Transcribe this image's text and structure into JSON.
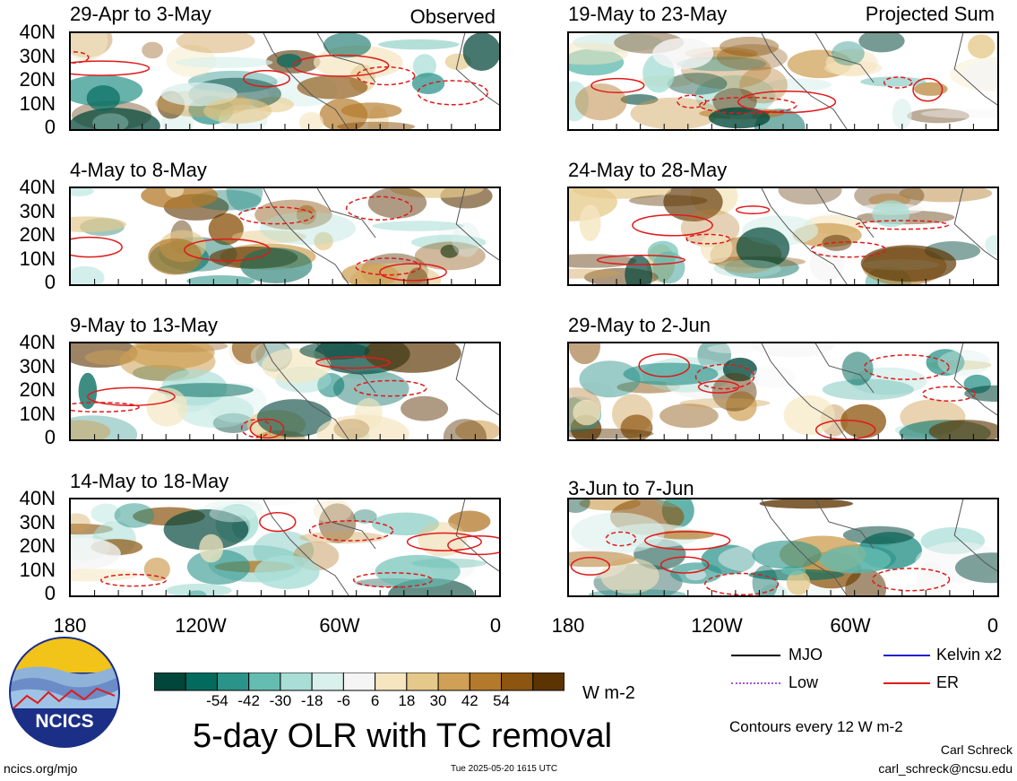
{
  "left_column_tag": "Observed",
  "right_column_tag": "Projected Sum",
  "panels_left": [
    {
      "title": "29-Apr to 3-May"
    },
    {
      "title": "4-May to 8-May"
    },
    {
      "title": "9-May to 13-May"
    },
    {
      "title": "14-May to 18-May"
    }
  ],
  "panels_right": [
    {
      "title": "19-May to 23-May"
    },
    {
      "title": "24-May to 28-May"
    },
    {
      "title": "29-May to 2-Jun"
    },
    {
      "title": "3-Jun to 7-Jun"
    }
  ],
  "y_axis_labels": [
    "40N",
    "30N",
    "20N",
    "10N",
    "0"
  ],
  "x_axis_labels": [
    "180",
    "120W",
    "60W",
    "0"
  ],
  "colorbar": {
    "tick_labels": [
      "-54",
      "-42",
      "-30",
      "-18",
      "-6",
      "6",
      "18",
      "30",
      "42",
      "54"
    ],
    "unit": "W m-2",
    "colors": [
      "#01463a",
      "#036b5e",
      "#2a938a",
      "#65bdb2",
      "#a8ded6",
      "#d9f0ec",
      "#f5f5f5",
      "#f5e6c0",
      "#e5c98a",
      "#cfa055",
      "#b47a2b",
      "#8c5510",
      "#5c3402"
    ]
  },
  "legend": {
    "mjo": "MJO",
    "kelvin": "Kelvin x2",
    "low": "Low",
    "er": "ER",
    "colors": {
      "mjo": "#000000",
      "kelvin": "#1f1fcf",
      "low": "#a455d6",
      "er": "#e01a1a"
    }
  },
  "contour_note": "Contours every 12 W m-2",
  "main_title": "5-day OLR with TC removal",
  "logo_text": "NCICS",
  "footer": {
    "url": "ncics.org/mjo",
    "timestamp": "Tue 2025-05-20 1615 UTC",
    "author": "Carl Schreck",
    "email": "carl_schreck@ncsu.edu"
  }
}
